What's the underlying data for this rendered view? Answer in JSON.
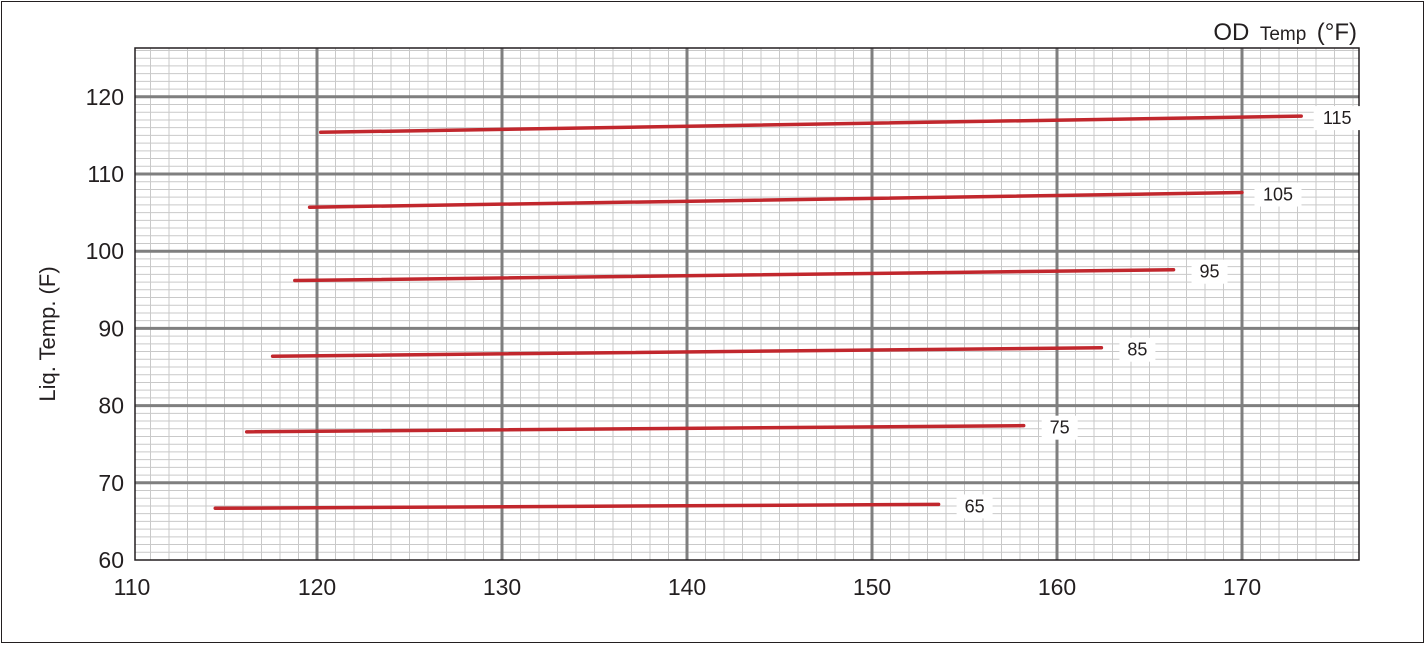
{
  "chart_data": {
    "type": "line",
    "title": "",
    "xlabel": "OD Temp (°F)",
    "xlabel_parts": {
      "main": "OD",
      "sub": "Temp",
      "unit": "(°F)"
    },
    "ylabel": "Liq. Temp. (F)",
    "xlim": [
      110,
      176
    ],
    "ylim": [
      60,
      127
    ],
    "x_ticks": [
      110,
      120,
      130,
      140,
      150,
      160,
      170
    ],
    "y_ticks": [
      60,
      70,
      80,
      90,
      100,
      110,
      120
    ],
    "grid": true,
    "line_color": "#c1272d",
    "series": [
      {
        "name": "115",
        "x": [
          120.2,
          173.2
        ],
        "y": [
          115.4,
          117.5
        ]
      },
      {
        "name": "105",
        "x": [
          119.6,
          170.0
        ],
        "y": [
          105.7,
          107.6
        ]
      },
      {
        "name": "95",
        "x": [
          118.8,
          166.3
        ],
        "y": [
          96.2,
          97.6
        ]
      },
      {
        "name": "85",
        "x": [
          117.6,
          162.4
        ],
        "y": [
          86.4,
          87.5
        ]
      },
      {
        "name": "75",
        "x": [
          116.2,
          158.2
        ],
        "y": [
          76.6,
          77.4
        ]
      },
      {
        "name": "65",
        "x": [
          114.5,
          153.6
        ],
        "y": [
          66.7,
          67.2
        ]
      }
    ]
  }
}
